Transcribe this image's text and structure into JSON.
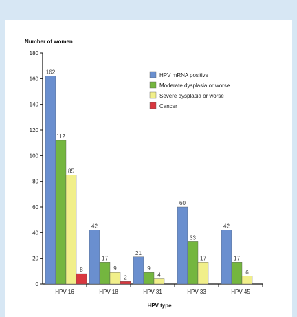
{
  "chart_data": {
    "type": "bar",
    "ylabel": "Number of women",
    "xlabel": "HPV type",
    "categories": [
      "HPV 16",
      "HPV 18",
      "HPV 31",
      "HPV 33",
      "HPV 45"
    ],
    "ylim": [
      0,
      180
    ],
    "yticks": [
      0,
      20,
      40,
      60,
      80,
      100,
      120,
      140,
      160,
      180
    ],
    "legend_position": "top-right",
    "series": [
      {
        "name": "HPV mRNA positive",
        "color": "#6a8fcf",
        "values": [
          162,
          42,
          21,
          60,
          42
        ]
      },
      {
        "name": "Moderate dysplasia or worse",
        "color": "#74b63f",
        "values": [
          112,
          17,
          9,
          33,
          17
        ]
      },
      {
        "name": "Severe dysplasia or worse",
        "color": "#f1ef8a",
        "values": [
          85,
          9,
          4,
          17,
          6
        ]
      },
      {
        "name": "Cancer",
        "color": "#d9373f",
        "values": [
          8,
          2,
          0,
          0,
          0
        ]
      }
    ],
    "data_labels": [
      [
        "162",
        "112",
        "85",
        "8"
      ],
      [
        "42",
        "17",
        "9",
        "2"
      ],
      [
        "21",
        "9",
        "4",
        ""
      ],
      [
        "60",
        "33",
        "17",
        ""
      ],
      [
        "42",
        "17",
        "6",
        ""
      ]
    ]
  }
}
